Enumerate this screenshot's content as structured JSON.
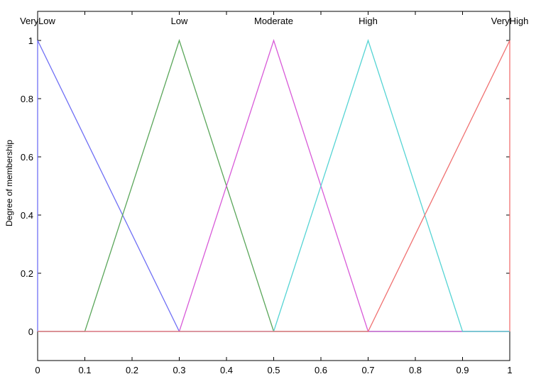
{
  "chart_data": {
    "type": "line",
    "ylabel": "Degree of membership",
    "xlim": [
      0,
      1
    ],
    "ylim": [
      -0.1,
      1.1
    ],
    "x_ticks": [
      0,
      0.1,
      0.2,
      0.3,
      0.4,
      0.5,
      0.6,
      0.7,
      0.8,
      0.9,
      1
    ],
    "x_tick_labels": [
      "0",
      "0.1",
      "0.2",
      "0.3",
      "0.4",
      "0.5",
      "0.6",
      "0.7",
      "0.8",
      "0.9",
      "1"
    ],
    "y_ticks": [
      0,
      0.2,
      0.4,
      0.6,
      0.8,
      1
    ],
    "y_tick_labels": [
      "0",
      "0.2",
      "0.4",
      "0.6",
      "0.8",
      "1"
    ],
    "grid": false,
    "series": [
      {
        "name": "VeryLow",
        "color": "#6f6ff5",
        "x": [
          0,
          0,
          0.3,
          1
        ],
        "y": [
          0,
          1,
          0,
          0
        ]
      },
      {
        "name": "Low",
        "color": "#5aa65a",
        "x": [
          0,
          0.1,
          0.3,
          0.5,
          1
        ],
        "y": [
          0,
          0,
          1,
          0,
          0
        ]
      },
      {
        "name": "Moderate",
        "color": "#d85ad8",
        "x": [
          0,
          0.3,
          0.5,
          0.7,
          1
        ],
        "y": [
          0,
          0,
          1,
          0,
          0
        ]
      },
      {
        "name": "High",
        "color": "#55d4d4",
        "x": [
          0,
          0.5,
          0.7,
          0.9,
          1
        ],
        "y": [
          0,
          0,
          1,
          0,
          0
        ]
      },
      {
        "name": "VeryHigh",
        "color": "#f07070",
        "x": [
          0,
          0.7,
          1,
          1
        ],
        "y": [
          0,
          0,
          1,
          0
        ]
      }
    ]
  }
}
